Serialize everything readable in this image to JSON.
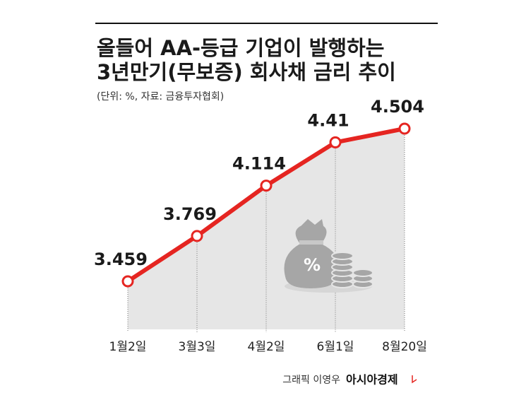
{
  "chart_data": {
    "type": "line",
    "title_lines": [
      "올들어 AA-등급 기업이 발행하는",
      "3년만기(무보증) 회사채 금리 추이"
    ],
    "subtitle": "(단위: %, 자료: 금융투자협회)",
    "categories": [
      "1월2일",
      "3월3일",
      "4월2일",
      "6월1일",
      "8월20일"
    ],
    "values": [
      3.459,
      3.769,
      4.114,
      4.41,
      4.504
    ],
    "color": "#e52521",
    "credit": "그래픽 이영우",
    "brand": "아시아경제"
  }
}
